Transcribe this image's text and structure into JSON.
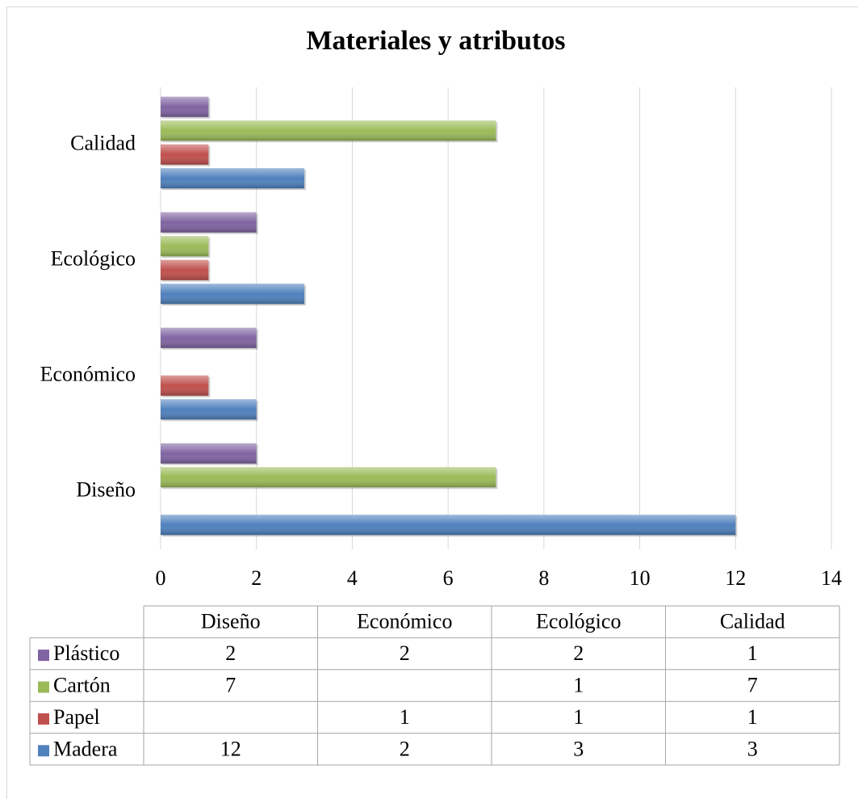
{
  "chart_data": {
    "type": "bar",
    "orientation": "horizontal",
    "title": "Materiales y atributos",
    "categories": [
      "Diseño",
      "Económico",
      "Ecológico",
      "Calidad"
    ],
    "series": [
      {
        "name": "Madera",
        "color": "#4f81bd",
        "values": [
          12,
          2,
          3,
          3
        ]
      },
      {
        "name": "Papel",
        "color": "#c0504d",
        "values": [
          null,
          1,
          1,
          1
        ]
      },
      {
        "name": "Cartón",
        "color": "#9bbb59",
        "values": [
          7,
          null,
          1,
          7
        ]
      },
      {
        "name": "Plástico",
        "color": "#8064a2",
        "values": [
          2,
          2,
          2,
          1
        ]
      }
    ],
    "xlim": [
      0,
      14
    ],
    "xticks": [
      0,
      2,
      4,
      6,
      8,
      10,
      12,
      14
    ],
    "grid": true,
    "data_table": true
  }
}
